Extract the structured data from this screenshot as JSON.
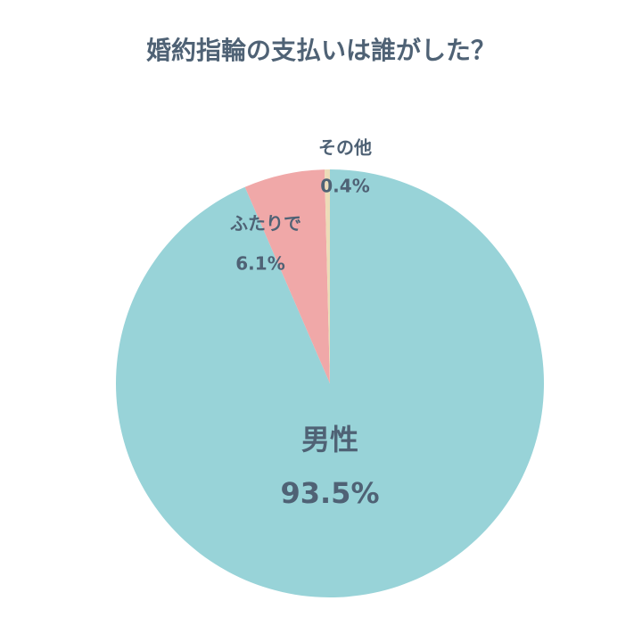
{
  "chart_data": {
    "type": "pie",
    "title": "婚約指輪の支払いは誰がした？",
    "categories": [
      "男性",
      "ふたりで",
      "その他"
    ],
    "values": [
      93.5,
      6.1,
      0.4
    ],
    "value_labels": [
      "93.5%",
      "6.1%",
      "0.4%"
    ],
    "colors": [
      "#98d3d8",
      "#f0a8a8",
      "#ecdcb8"
    ]
  }
}
